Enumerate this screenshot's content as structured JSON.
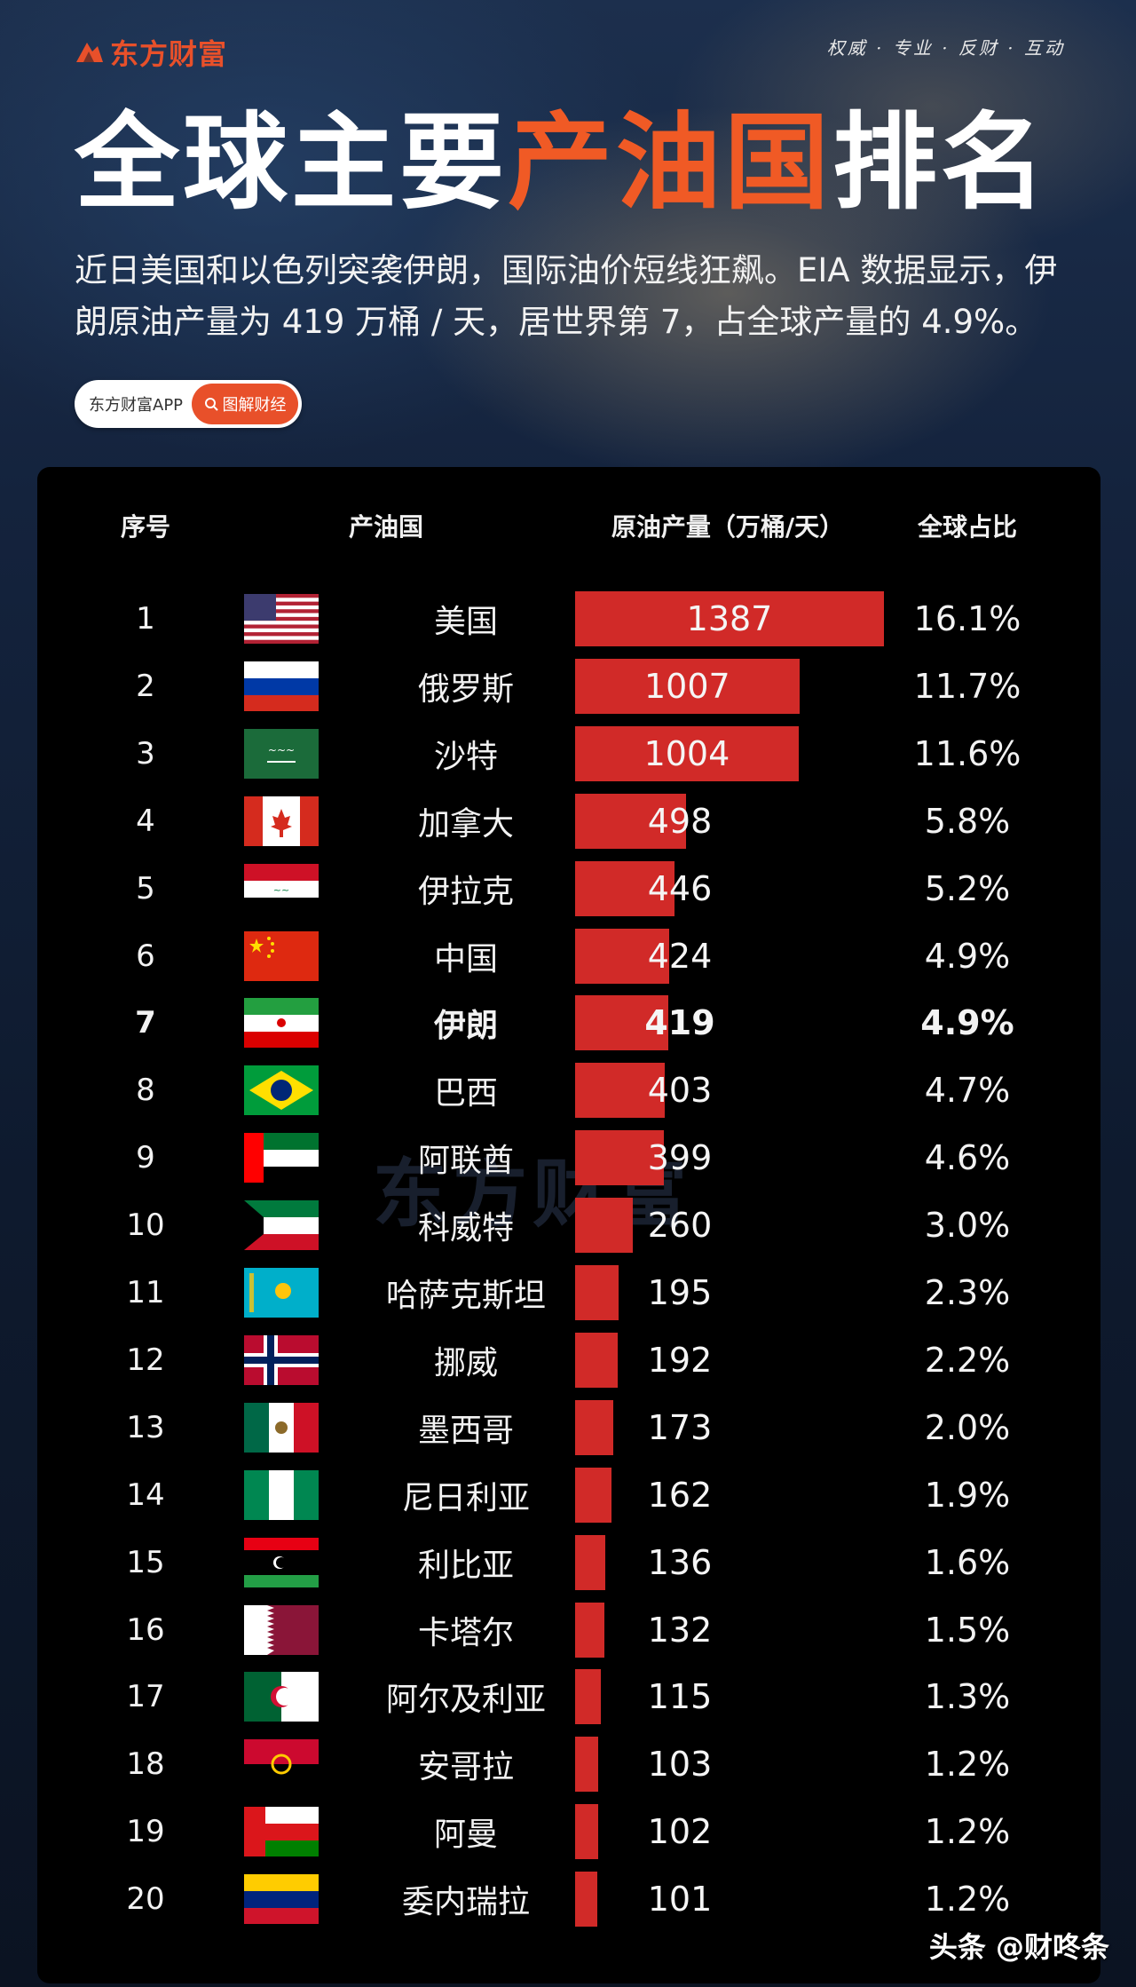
{
  "brand": {
    "logo_text": "东方财富",
    "slogan": "权威 · 专业 · 反财 · 互动"
  },
  "header": {
    "title_part1": "全球主要",
    "title_highlight": "产油国",
    "title_part2": "排名",
    "subtitle": "近日美国和以色列突袭伊朗，国际油价短线狂飙。EIA 数据显示，伊朗原油产量为 419 万桶 / 天，居世界第 7，占全球产量的 4.9%。",
    "pill_left": "东方财富APP",
    "pill_right": "图解财经"
  },
  "table_headers": {
    "rank": "序号",
    "country": "产油国",
    "output": "原油产量（万桶/天）",
    "share": "全球占比"
  },
  "watermark": "东方财富",
  "footer": "头条 @财咚条",
  "accent_color": "#f05a25",
  "bar_color": "#d12a28",
  "chart_data": {
    "type": "bar",
    "orientation": "horizontal",
    "title": "全球主要产油国排名",
    "unit": "万桶/天",
    "rows": [
      {
        "rank": "1",
        "country": "美国",
        "flag": "us-flag",
        "value": 1387,
        "share": "16.1%"
      },
      {
        "rank": "2",
        "country": "俄罗斯",
        "flag": "russia-flag",
        "value": 1007,
        "share": "11.7%"
      },
      {
        "rank": "3",
        "country": "沙特",
        "flag": "saudi-flag",
        "value": 1004,
        "share": "11.6%"
      },
      {
        "rank": "4",
        "country": "加拿大",
        "flag": "canada-flag",
        "value": 498,
        "share": "5.8%"
      },
      {
        "rank": "5",
        "country": "伊拉克",
        "flag": "iraq-flag",
        "value": 446,
        "share": "5.2%"
      },
      {
        "rank": "6",
        "country": "中国",
        "flag": "china-flag",
        "value": 424,
        "share": "4.9%"
      },
      {
        "rank": "7",
        "country": "伊朗",
        "flag": "iran-flag",
        "value": 419,
        "share": "4.9%",
        "highlight": true
      },
      {
        "rank": "8",
        "country": "巴西",
        "flag": "brazil-flag",
        "value": 403,
        "share": "4.7%"
      },
      {
        "rank": "9",
        "country": "阿联酋",
        "flag": "uae-flag",
        "value": 399,
        "share": "4.6%"
      },
      {
        "rank": "10",
        "country": "科威特",
        "flag": "kuwait-flag",
        "value": 260,
        "share": "3.0%"
      },
      {
        "rank": "11",
        "country": "哈萨克斯坦",
        "flag": "kazakhstan-flag",
        "value": 195,
        "share": "2.3%"
      },
      {
        "rank": "12",
        "country": "挪威",
        "flag": "norway-flag",
        "value": 192,
        "share": "2.2%"
      },
      {
        "rank": "13",
        "country": "墨西哥",
        "flag": "mexico-flag",
        "value": 173,
        "share": "2.0%"
      },
      {
        "rank": "14",
        "country": "尼日利亚",
        "flag": "nigeria-flag",
        "value": 162,
        "share": "1.9%"
      },
      {
        "rank": "15",
        "country": "利比亚",
        "flag": "libya-flag",
        "value": 136,
        "share": "1.6%"
      },
      {
        "rank": "16",
        "country": "卡塔尔",
        "flag": "qatar-flag",
        "value": 132,
        "share": "1.5%"
      },
      {
        "rank": "17",
        "country": "阿尔及利亚",
        "flag": "algeria-flag",
        "value": 115,
        "share": "1.3%"
      },
      {
        "rank": "18",
        "country": "安哥拉",
        "flag": "angola-flag",
        "value": 103,
        "share": "1.2%"
      },
      {
        "rank": "19",
        "country": "阿曼",
        "flag": "oman-flag",
        "value": 102,
        "share": "1.2%"
      },
      {
        "rank": "20",
        "country": "委内瑞拉",
        "flag": "venezuela-flag",
        "value": 101,
        "share": "1.2%"
      }
    ]
  }
}
